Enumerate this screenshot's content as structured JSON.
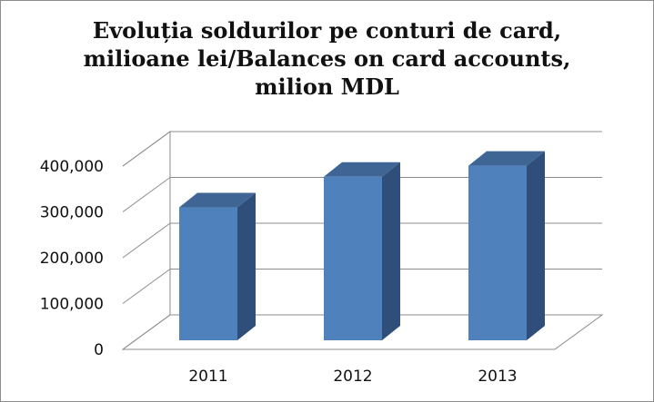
{
  "chart_data": {
    "type": "bar",
    "title_lines": [
      "Evoluția soldurilor pe conturi de card,",
      "milioane lei/Balances on card accounts,",
      "milion MDL"
    ],
    "categories": [
      "2011",
      "2012",
      "2013"
    ],
    "values": [
      290000,
      357000,
      381000
    ],
    "y_ticks": [
      "0",
      "100,000",
      "200,000",
      "300,000",
      "400,000"
    ],
    "ylim": [
      0,
      400000
    ],
    "grid": true,
    "legend": "none",
    "colors": {
      "bar_front": "#4f81bd",
      "bar_side": "#2f4f7a",
      "bar_top": "#3f6595",
      "grid": "#8c8c8c"
    }
  }
}
